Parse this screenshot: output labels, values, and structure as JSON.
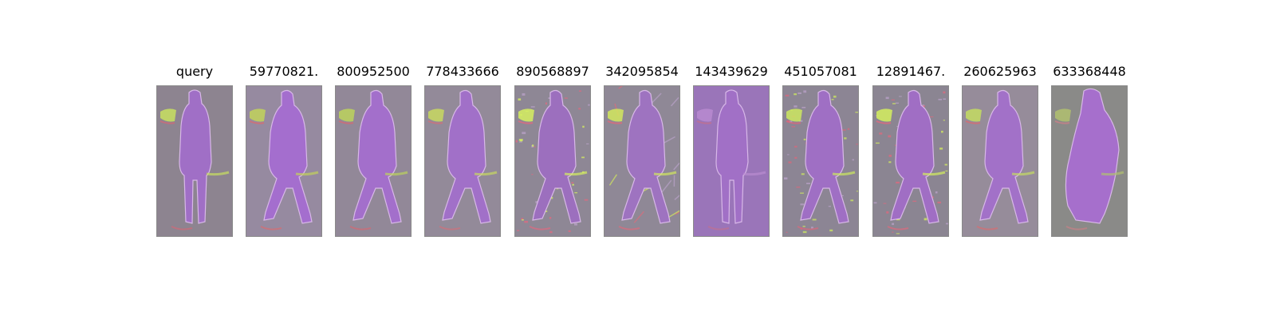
{
  "figure": {
    "panels": [
      {
        "title": "query",
        "palette": {
          "bg": "#8d8490",
          "fig": "#a06fc6",
          "hi1": "#c8e060",
          "hi2": "#d06a78"
        },
        "pose": "standing",
        "texture": "smooth"
      },
      {
        "title": "59770821.",
        "palette": {
          "bg": "#968aa0",
          "fig": "#a46ece",
          "hi1": "#c2d25a",
          "hi2": "#d86c70"
        },
        "pose": "walking",
        "texture": "smooth"
      },
      {
        "title": "800952500",
        "palette": {
          "bg": "#928898",
          "fig": "#a36fcb",
          "hi1": "#bcd35c",
          "hi2": "#d46a74"
        },
        "pose": "walking",
        "texture": "smooth"
      },
      {
        "title": "778433666",
        "palette": {
          "bg": "#938a99",
          "fig": "#a170c8",
          "hi1": "#c8d860",
          "hi2": "#d0707a"
        },
        "pose": "walking",
        "texture": "smooth"
      },
      {
        "title": "890568897",
        "palette": {
          "bg": "#8e8795",
          "fig": "#9c6fbe",
          "hi1": "#d6f060",
          "hi2": "#e06a80"
        },
        "pose": "walking",
        "texture": "noisy"
      },
      {
        "title": "342095854",
        "palette": {
          "bg": "#8f8896",
          "fig": "#9e73c0",
          "hi1": "#d2e85e",
          "hi2": "#dc6c7c"
        },
        "pose": "walking",
        "texture": "streaky"
      },
      {
        "title": "143439629",
        "palette": {
          "bg": "#9a76b9",
          "fig": "#a170c6",
          "hi1": "#b98bd0",
          "hi2": "#c07090"
        },
        "pose": "standing",
        "texture": "flat"
      },
      {
        "title": "451057081",
        "palette": {
          "bg": "#8c8594",
          "fig": "#9f6fc4",
          "hi1": "#cce860",
          "hi2": "#d8687c"
        },
        "pose": "walking",
        "texture": "noisy"
      },
      {
        "title": "12891467.",
        "palette": {
          "bg": "#8b8592",
          "fig": "#a06ec4",
          "hi1": "#d4ee5e",
          "hi2": "#de6a7e"
        },
        "pose": "walking",
        "texture": "noisy"
      },
      {
        "title": "260625963",
        "palette": {
          "bg": "#968c9a",
          "fig": "#a271c8",
          "hi1": "#c4dc62",
          "hi2": "#d86c70"
        },
        "pose": "walking",
        "texture": "smooth"
      },
      {
        "title": "633368448",
        "palette": {
          "bg": "#8a8a88",
          "fig": "#a66fcc",
          "hi1": "#b0c070",
          "hi2": "#c88088"
        },
        "pose": "bag",
        "texture": "smooth"
      }
    ]
  }
}
